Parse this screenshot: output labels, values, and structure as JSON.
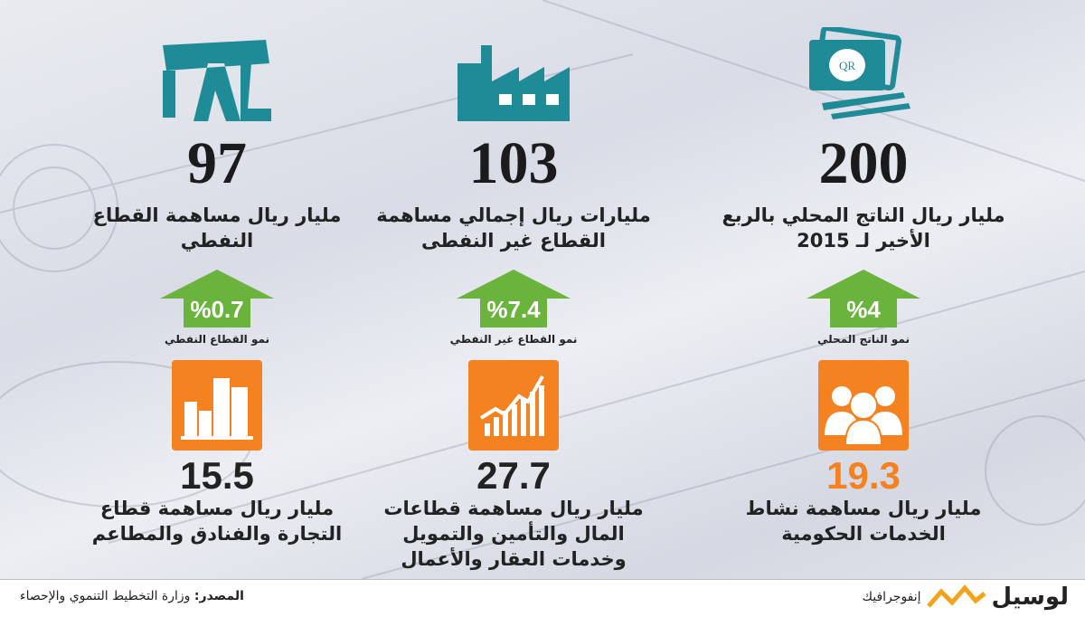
{
  "top": [
    {
      "value": "200",
      "description": [
        "مليار ريال الناتج المحلي بالربع",
        "الأخير لـ 2015"
      ],
      "growth": "%4",
      "growth_label": "نمو الناتج المحلي"
    },
    {
      "value": "103",
      "description": [
        "مليارات ريال إجمالي مساهمة",
        "القطاع غير النفطى"
      ],
      "growth": "%7.4",
      "growth_label": "نمو القطاع غير النفطي"
    },
    {
      "value": "97",
      "description": [
        "مليار ريال مساهمة القطاع",
        "النفطي"
      ],
      "growth": "%0.7",
      "growth_label": "نمو القطاع النفطي"
    }
  ],
  "bottom": [
    {
      "value": "19.3",
      "description": [
        "مليار ريال مساهمة نشاط",
        "الخدمات الحكومية"
      ]
    },
    {
      "value": "27.7",
      "description": [
        "مليار ريال مساهمة قطاعات",
        "المال والتأمين والتمويل",
        "وخدمات العقار والأعمال"
      ]
    },
    {
      "value": "15.5",
      "description": [
        "مليار ريال مساهمة قطاع",
        "التجارة والفنادق والمطاعم"
      ]
    }
  ],
  "icon_text": "QR",
  "footer": {
    "source_label": "المصدر:",
    "source": "وزارة التخطيط التنموي والإحصاء",
    "brand": "لوسيل",
    "section": "إنفوجرافيك"
  }
}
